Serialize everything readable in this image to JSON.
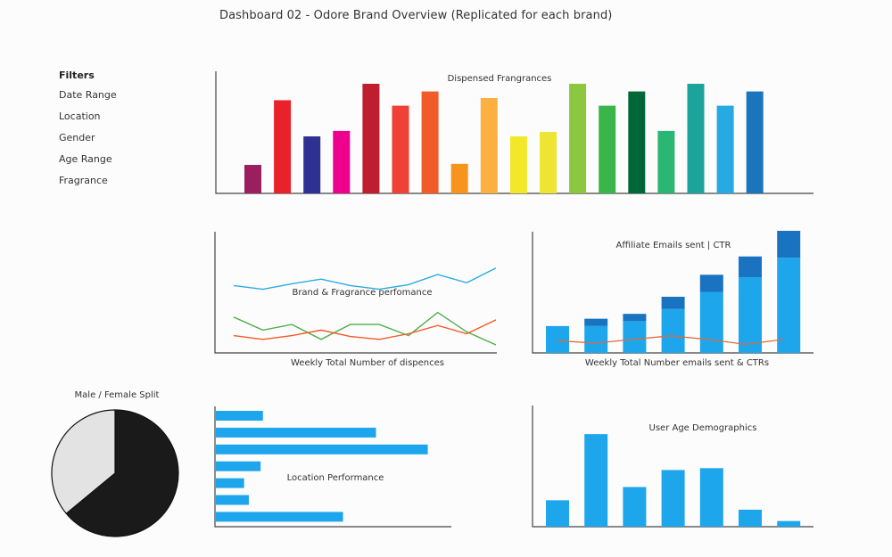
{
  "page_title": "Dashboard 02 - Odore Brand Overview (Replicated for each brand)",
  "filters": {
    "title": "Filters",
    "items": [
      "Date Range",
      "Location",
      "Gender",
      "Age Range",
      "Fragrance"
    ]
  },
  "chart_data": [
    {
      "id": "dispensed",
      "type": "bar",
      "title": "Dispensed Frangrances",
      "xlabel": "",
      "ylabel": "",
      "ylim": [
        0,
        100
      ],
      "grid": false,
      "values": [
        26,
        85,
        52,
        57,
        100,
        80,
        93,
        27,
        87,
        52,
        56,
        100,
        80,
        93,
        57,
        100,
        80,
        93
      ],
      "colors": [
        "#9a1f5e",
        "#e8212b",
        "#2e3192",
        "#ec008c",
        "#be1e2d",
        "#ef4136",
        "#f15a29",
        "#f7941d",
        "#fbb040",
        "#f2e829",
        "#ede532",
        "#8dc63f",
        "#39b54a",
        "#006838",
        "#2bb673",
        "#1ba39c",
        "#27aae1",
        "#1b75bc"
      ]
    },
    {
      "id": "brand-performance",
      "type": "line",
      "title": "Brand & Fragrance perfomance",
      "xlabel": "Weekly Total Number of dispences",
      "ylabel": "",
      "ylim": [
        0,
        100
      ],
      "grid": false,
      "x": [
        1,
        2,
        3,
        4,
        5,
        6,
        7,
        8,
        9,
        10
      ],
      "series": [
        {
          "color": "#29abe2",
          "values": [
            64,
            60,
            66,
            71,
            64,
            60,
            65,
            76,
            67,
            83
          ]
        },
        {
          "color": "#4daf4a",
          "values": [
            30,
            16,
            22,
            6,
            22,
            22,
            10,
            35,
            14,
            0
          ]
        },
        {
          "color": "#f05a28",
          "values": [
            10,
            6,
            10,
            16,
            9,
            6,
            12,
            21,
            12,
            27
          ]
        }
      ]
    },
    {
      "id": "affiliate-emails",
      "type": "bar",
      "title": "Affiliate Emails sent | CTR",
      "xlabel": "Weekly Total Number emails sent & CTRs",
      "ylabel": "",
      "ylim": [
        0,
        100
      ],
      "grid": false,
      "stacked": true,
      "series": [
        {
          "color": "#1ea6ec",
          "values": [
            22,
            22,
            26,
            36,
            50,
            62,
            78
          ]
        },
        {
          "color": "#1a73c0",
          "values": [
            0,
            6,
            6,
            10,
            14,
            17,
            22
          ]
        }
      ],
      "overlay_line": {
        "color": "#e06a3a",
        "values": [
          10,
          8,
          11,
          14,
          11,
          7,
          11
        ]
      }
    },
    {
      "id": "gender-split",
      "type": "pie",
      "title": "Male / Female Split",
      "slices": [
        {
          "value": 64,
          "color": "#1a1a1a"
        },
        {
          "value": 36,
          "color": "#e3e3e3"
        }
      ]
    },
    {
      "id": "location-performance",
      "type": "bar",
      "orientation": "horizontal",
      "title": "Location Performance",
      "xlabel": "",
      "ylabel": "",
      "xlim": [
        0,
        100
      ],
      "grid": false,
      "values": [
        20,
        68,
        90,
        19,
        12,
        14,
        54
      ],
      "color": "#1ea6ec"
    },
    {
      "id": "age-demographics",
      "type": "bar",
      "title": "User Age Demographics",
      "xlabel": "",
      "ylabel": "",
      "ylim": [
        0,
        100
      ],
      "grid": false,
      "values": [
        28,
        98,
        42,
        60,
        62,
        18,
        6
      ],
      "color": "#1ea6ec"
    }
  ]
}
